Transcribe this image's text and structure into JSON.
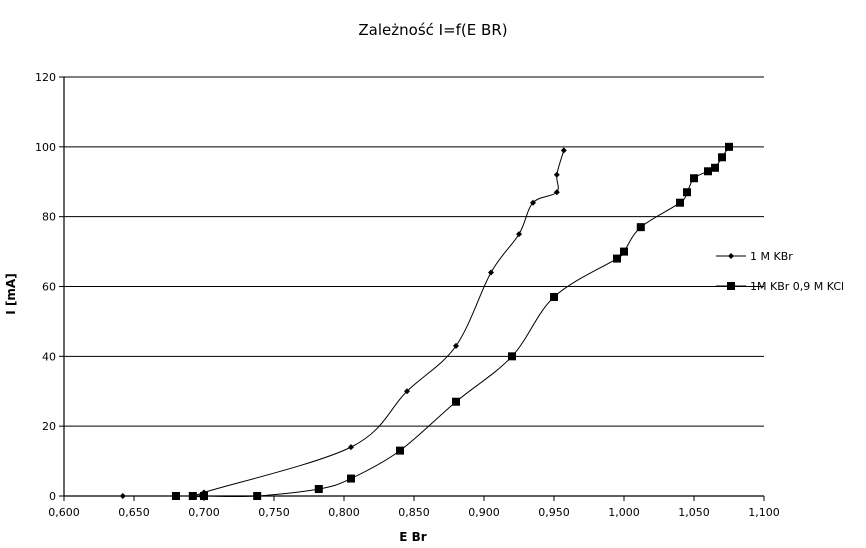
{
  "chart_data": {
    "type": "line",
    "title": "Zależność I=f(E BR)",
    "xlabel": "E Br",
    "ylabel": "I [mA]",
    "xlim": [
      0.6,
      1.1
    ],
    "ylim": [
      0,
      120
    ],
    "x_ticks": [
      "0,600",
      "0,650",
      "0,700",
      "0,750",
      "0,800",
      "0,850",
      "0,900",
      "0,950",
      "1,000",
      "1,050",
      "1,100"
    ],
    "y_ticks": [
      "0",
      "20",
      "40",
      "60",
      "80",
      "100",
      "120"
    ],
    "grid": "horizontal",
    "legend_position": "right",
    "series": [
      {
        "name": "1 M KBr",
        "marker": "diamond",
        "x": [
          0.642,
          0.68,
          0.692,
          0.698,
          0.7,
          0.805,
          0.845,
          0.88,
          0.905,
          0.925,
          0.935,
          0.952,
          0.952,
          0.957
        ],
        "y": [
          0,
          0,
          0,
          0,
          1,
          14,
          30,
          43,
          64,
          75,
          84,
          87,
          92,
          99
        ]
      },
      {
        "name": "1M KBr 0,9 M KCl",
        "marker": "square",
        "x": [
          0.68,
          0.692,
          0.7,
          0.738,
          0.782,
          0.805,
          0.84,
          0.88,
          0.92,
          0.95,
          0.995,
          1.0,
          1.012,
          1.04,
          1.045,
          1.05,
          1.06,
          1.065,
          1.07,
          1.075
        ],
        "y": [
          0,
          0,
          0,
          0,
          2,
          5,
          13,
          27,
          40,
          57,
          68,
          70,
          77,
          84,
          87,
          91,
          93,
          94,
          97,
          100
        ]
      }
    ]
  }
}
